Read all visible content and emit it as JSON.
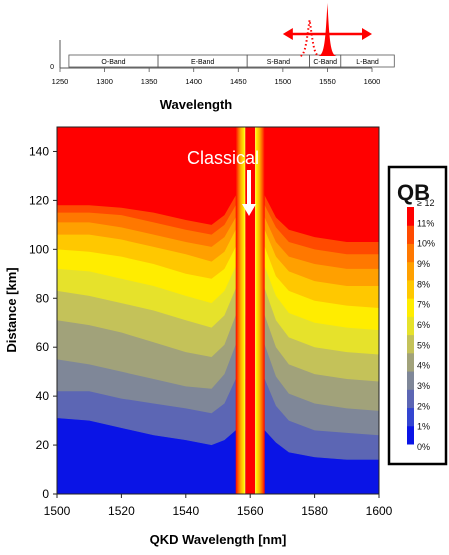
{
  "chart_data": [
    {
      "type": "line",
      "title": "",
      "xlabel": "Wavelength",
      "ylabel": "",
      "xlim": [
        1250,
        1600
      ],
      "x_ticks": [
        1250,
        1300,
        1350,
        1400,
        1450,
        1500,
        1550,
        1600
      ],
      "y_ticks": [
        0
      ],
      "bands": [
        {
          "label": "O-Band",
          "start": 1260,
          "end": 1360
        },
        {
          "label": "E-Band",
          "start": 1360,
          "end": 1460
        },
        {
          "label": "S-Band",
          "start": 1460,
          "end": 1530
        },
        {
          "label": "C-Band",
          "start": 1530,
          "end": 1565
        },
        {
          "label": "L-Band",
          "start": 1565,
          "end": 1625
        }
      ],
      "annotations": {
        "classical_peak_nm": 1550,
        "qkd_range_nm": [
          1500,
          1600
        ],
        "qkd_dotted_peak_nm": 1530
      },
      "colors": {
        "peak": "#ff0000",
        "arrow": "#ff0000",
        "band_border": "#555555"
      }
    },
    {
      "type": "heatmap",
      "title": "",
      "xlabel": "QKD Wavelength [nm]",
      "ylabel": "Distance [km]",
      "xlim": [
        1500,
        1600
      ],
      "ylim": [
        0,
        150
      ],
      "x_ticks": [
        1500,
        1520,
        1540,
        1560,
        1580,
        1600
      ],
      "y_ticks": [
        0,
        20,
        40,
        60,
        80,
        100,
        120,
        140
      ],
      "annotation": {
        "text": "Classical",
        "x": 1560
      },
      "classical_channel": {
        "center": 1560,
        "null_half_width": 1.5,
        "band_half_width": 4.5
      },
      "contour_x": [
        1500,
        1510,
        1520,
        1530,
        1540,
        1548,
        1552,
        1555.5,
        1564.5,
        1568,
        1572,
        1580,
        1590,
        1600
      ],
      "contours": [
        {
          "level": "1%",
          "y": [
            31,
            30,
            27,
            24,
            22,
            20,
            22,
            26,
            26,
            21,
            17,
            15,
            14,
            14
          ]
        },
        {
          "level": "2%",
          "y": [
            42,
            42,
            39,
            37,
            35,
            33,
            37,
            47,
            47,
            36,
            30,
            26,
            25,
            24
          ]
        },
        {
          "level": "3%",
          "y": [
            55,
            53,
            50,
            47,
            44,
            43,
            49,
            61,
            61,
            48,
            41,
            37,
            35,
            34
          ]
        },
        {
          "level": "4%",
          "y": [
            71,
            69,
            66,
            62,
            58,
            56,
            61,
            73,
            73,
            60,
            53,
            49,
            47,
            46
          ]
        },
        {
          "level": "5%",
          "y": [
            83,
            81,
            78,
            75,
            71,
            68,
            73,
            84,
            84,
            71,
            64,
            60,
            58,
            57
          ]
        },
        {
          "level": "6%",
          "y": [
            92,
            91,
            88,
            85,
            81,
            78,
            83,
            93,
            93,
            81,
            74,
            70,
            68,
            67
          ]
        },
        {
          "level": "7%",
          "y": [
            100,
            99,
            97,
            94,
            90,
            88,
            92,
            101,
            101,
            89,
            83,
            79,
            77,
            76
          ]
        },
        {
          "level": "8%",
          "y": [
            106,
            106,
            104,
            101,
            98,
            95,
            99,
            108,
            108,
            97,
            91,
            87,
            85,
            85
          ]
        },
        {
          "level": "9%",
          "y": [
            111,
            111,
            109,
            106,
            103,
            101,
            105,
            113,
            113,
            103,
            97,
            94,
            92,
            92
          ]
        },
        {
          "level": "10%",
          "y": [
            115,
            115,
            114,
            111,
            108,
            106,
            110,
            118,
            118,
            109,
            103,
            100,
            98,
            98
          ]
        },
        {
          "level": "11%",
          "y": [
            118,
            118,
            117,
            115,
            112,
            110,
            114,
            122,
            122,
            113,
            108,
            105,
            103,
            103
          ]
        }
      ],
      "colorbar": {
        "title": "QB",
        "labels": [
          "≥ 12",
          "11%",
          "10%",
          "9%",
          "8%",
          "7%",
          "6%",
          "5%",
          "4%",
          "3%",
          "2%",
          "1%",
          "0%"
        ],
        "colors": [
          "#0a14e6",
          "#3345d1",
          "#5c66b4",
          "#7f8798",
          "#a1a27a",
          "#c4c259",
          "#e6e22b",
          "#ffed00",
          "#ffc800",
          "#ffa000",
          "#ff7800",
          "#ff4a00",
          "#ff0000"
        ]
      }
    }
  ]
}
